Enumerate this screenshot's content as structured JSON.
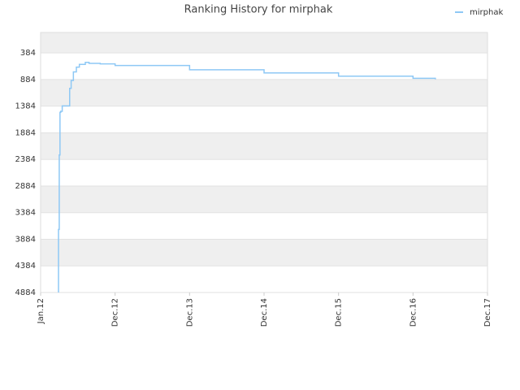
{
  "chart_data": {
    "type": "line",
    "title": "Ranking History for mirphak",
    "series": [
      {
        "name": "mirphak",
        "color": "#8ec8f5",
        "step": true,
        "x": [
          0.24,
          0.24,
          0.25,
          0.26,
          0.27,
          0.29,
          0.38,
          0.39,
          0.41,
          0.44,
          0.48,
          0.52,
          0.6,
          0.65,
          0.8,
          1.0,
          2.0,
          3.0,
          4.0,
          5.0,
          5.3
        ],
        "values": [
          4884,
          3700,
          2300,
          1500,
          1480,
          1380,
          1380,
          1050,
          900,
          740,
          650,
          600,
          560,
          580,
          590,
          620,
          700,
          760,
          820,
          860,
          880
        ]
      }
    ],
    "xlim": [
      0,
      6
    ],
    "xticks": [
      {
        "value": 0,
        "label": "Jan.12"
      },
      {
        "value": 1,
        "label": "Dec.12"
      },
      {
        "value": 2,
        "label": "Dec.13"
      },
      {
        "value": 3,
        "label": "Dec.14"
      },
      {
        "value": 4,
        "label": "Dec.15"
      },
      {
        "value": 5,
        "label": "Dec.16"
      },
      {
        "value": 6,
        "label": "Dec.17"
      }
    ],
    "ylim": [
      4884,
      0
    ],
    "yticks": [
      384,
      884,
      1384,
      1884,
      2384,
      2884,
      3384,
      3884,
      4384,
      4884
    ],
    "inverted_y": true,
    "banded": true,
    "legend": "top-right"
  }
}
